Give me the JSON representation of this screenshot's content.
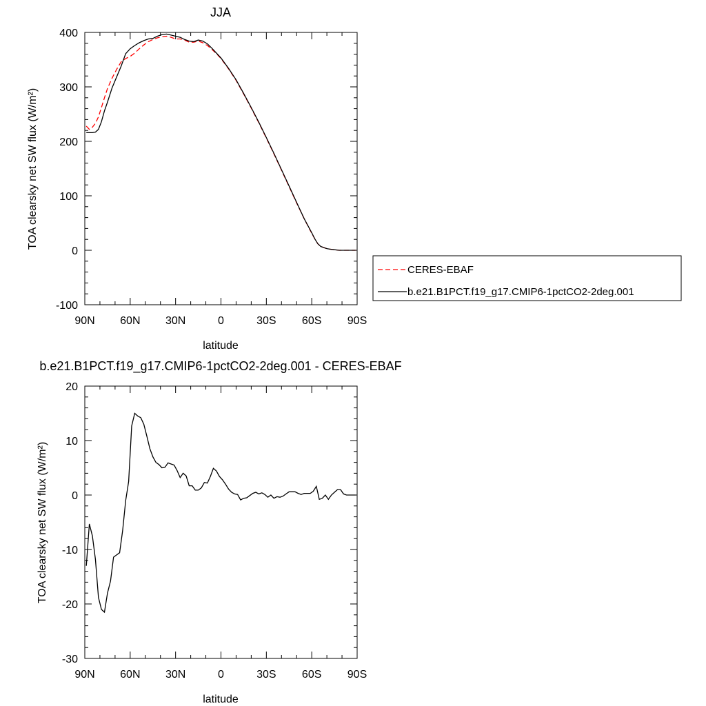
{
  "chart_data": [
    {
      "type": "line",
      "title": "JJA",
      "xlabel": "latitude",
      "ylabel": "TOA clearsky net SW flux (W/m²)",
      "xlim": [
        90,
        -90
      ],
      "ylim": [
        -100,
        400
      ],
      "xticks": [
        90,
        60,
        30,
        0,
        -30,
        -60,
        -90
      ],
      "xtick_labels": [
        "90N",
        "60N",
        "30N",
        "0",
        "30S",
        "60S",
        "90S"
      ],
      "yticks": [
        -100,
        0,
        100,
        200,
        300,
        400
      ],
      "ytick_labels": [
        "-100",
        "0",
        "100",
        "200",
        "300",
        "400"
      ],
      "grid": false,
      "legend_position": "right",
      "series": [
        {
          "name": "CERES-EBAF",
          "color": "#ff0000",
          "dash": "dashed",
          "x": [
            89,
            87,
            85,
            83,
            81,
            79,
            77,
            75,
            72,
            69,
            66,
            63,
            60,
            57,
            54,
            51,
            48,
            45,
            42,
            39,
            36,
            33,
            30,
            27,
            24,
            21,
            18,
            15,
            12,
            9,
            6,
            3,
            0,
            -5,
            -10,
            -15,
            -20,
            -25,
            -30,
            -35,
            -40,
            -45,
            -50,
            -55,
            -60,
            -62,
            -64,
            -66,
            -68,
            -70,
            -72,
            -75,
            -78,
            -81,
            -84,
            -87,
            -89
          ],
          "y": [
            228,
            222,
            226,
            233,
            245,
            262,
            280,
            297,
            316,
            332,
            346,
            352,
            356,
            362,
            370,
            377,
            383,
            387,
            390,
            392,
            393,
            391,
            388,
            388,
            386,
            382,
            382,
            384,
            381,
            376,
            369,
            361,
            352,
            333,
            312,
            287,
            261,
            234,
            206,
            177,
            147,
            117,
            87,
            58,
            31,
            21,
            12,
            7,
            5,
            3,
            2,
            1,
            0,
            0,
            0,
            0,
            0
          ]
        },
        {
          "name": "b.e21.B1PCT.f19_g17.CMIP6-1pctCO2-2deg.001",
          "color": "#000000",
          "dash": "solid",
          "x": [
            89,
            87,
            85,
            83,
            81,
            79,
            77,
            75,
            72,
            69,
            66,
            63,
            60,
            57,
            54,
            51,
            48,
            45,
            42,
            39,
            36,
            33,
            30,
            27,
            24,
            21,
            18,
            15,
            12,
            9,
            6,
            3,
            0,
            -5,
            -10,
            -15,
            -20,
            -25,
            -30,
            -35,
            -40,
            -45,
            -50,
            -55,
            -60,
            -62,
            -64,
            -66,
            -68,
            -70,
            -72,
            -75,
            -78,
            -81,
            -84,
            -87,
            -89
          ],
          "y": [
            216,
            216,
            216,
            217,
            222,
            236,
            256,
            272,
            298,
            318,
            338,
            361,
            370,
            376,
            381,
            385,
            388,
            389,
            393,
            396,
            397,
            395,
            393,
            391,
            387,
            384,
            383,
            386,
            384,
            379,
            371,
            362,
            353,
            334,
            313,
            288,
            262,
            235,
            207,
            178,
            148,
            118,
            88,
            58,
            32,
            21,
            12,
            7,
            5,
            3,
            2,
            1,
            0,
            0,
            0,
            0,
            0
          ]
        }
      ]
    },
    {
      "type": "line",
      "title": "b.e21.B1PCT.f19_g17.CMIP6-1pctCO2-2deg.001 - CERES-EBAF",
      "xlabel": "latitude",
      "ylabel": "TOA clearsky net SW flux (W/m²)",
      "xlim": [
        90,
        -90
      ],
      "ylim": [
        -30,
        20
      ],
      "xticks": [
        90,
        60,
        30,
        0,
        -30,
        -60,
        -90
      ],
      "xtick_labels": [
        "90N",
        "60N",
        "30N",
        "0",
        "30S",
        "60S",
        "90S"
      ],
      "yticks": [
        -30,
        -20,
        -10,
        0,
        10,
        20
      ],
      "ytick_labels": [
        "-30",
        "-20",
        "-10",
        "0",
        "10",
        "20"
      ],
      "grid": false,
      "series": [
        {
          "color": "#000000",
          "dash": "solid",
          "x": [
            89,
            87,
            85,
            83,
            81,
            79,
            77,
            75,
            73,
            71,
            69,
            67,
            65,
            63,
            61,
            59,
            57,
            55,
            53,
            51,
            49,
            47,
            45,
            43,
            41,
            39,
            37,
            35,
            33,
            31,
            29,
            27,
            25,
            23,
            21,
            19,
            17,
            15,
            13,
            11,
            9,
            7,
            5,
            3,
            1,
            -1,
            -3,
            -5,
            -7,
            -9,
            -11,
            -13,
            -15,
            -17,
            -19,
            -21,
            -23,
            -25,
            -27,
            -29,
            -31,
            -33,
            -35,
            -37,
            -39,
            -41,
            -43,
            -45,
            -47,
            -49,
            -51,
            -53,
            -55,
            -57,
            -59,
            -61,
            -63,
            -65,
            -67,
            -69,
            -71,
            -73,
            -75,
            -77,
            -79,
            -81,
            -83,
            -85,
            -87,
            -89
          ],
          "y": [
            -13,
            -5.3,
            -7.5,
            -11.8,
            -18.8,
            -21,
            -21.5,
            -18,
            -15.8,
            -11.4,
            -11,
            -10.6,
            -6.5,
            -1,
            2.5,
            12.7,
            15,
            14.5,
            14.2,
            13,
            10.8,
            8.5,
            7,
            6,
            5.6,
            5,
            5.1,
            5.9,
            5.7,
            5.5,
            4.5,
            3.2,
            4,
            3.5,
            1.7,
            1.7,
            0.9,
            0.9,
            1.3,
            2.3,
            2.2,
            3.4,
            4.9,
            4.4,
            3.4,
            2.8,
            2,
            1.1,
            0.5,
            0.2,
            0.1,
            -0.9,
            -0.6,
            -0.5,
            -0.1,
            0.3,
            0.5,
            0.2,
            0.4,
            0.1,
            -0.4,
            0,
            -0.6,
            -0.3,
            -0.4,
            -0.2,
            0.2,
            0.6,
            0.6,
            0.6,
            0.3,
            0.1,
            0.3,
            0.3,
            0.3,
            0.7,
            1.6,
            -0.8,
            -0.6,
            0,
            -0.8,
            0,
            0.5,
            1,
            1,
            0.2,
            0,
            0,
            0,
            0
          ]
        }
      ]
    }
  ]
}
